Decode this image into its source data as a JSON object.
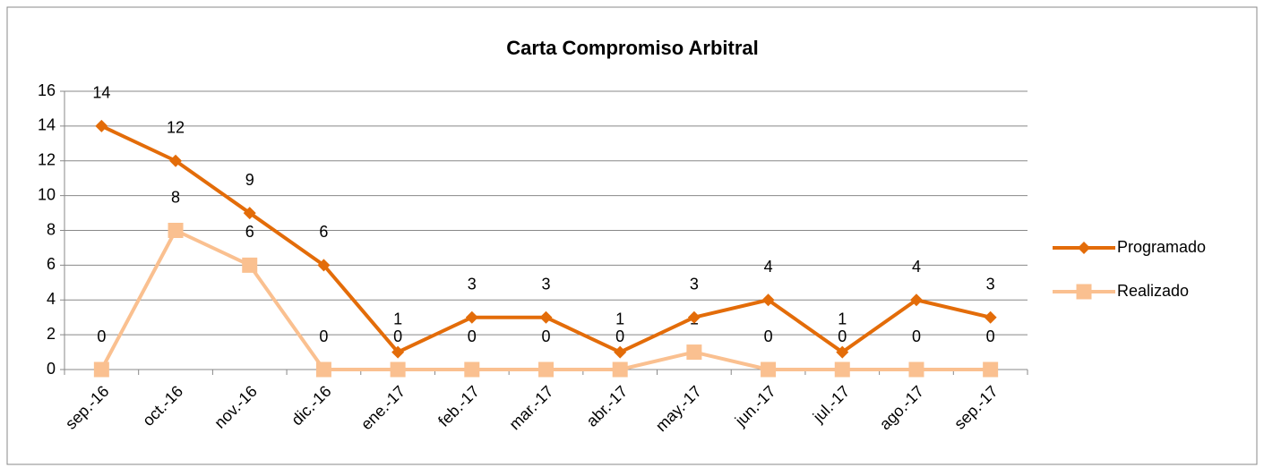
{
  "chart_data": {
    "type": "line",
    "title": "Carta Compromiso Arbitral",
    "categories": [
      "sep.-16",
      "oct.-16",
      "nov.-16",
      "dic.-16",
      "ene.-17",
      "feb.-17",
      "mar.-17",
      "abr.-17",
      "may.-17",
      "jun.-17",
      "jul.-17",
      "ago.-17",
      "sep.-17"
    ],
    "series": [
      {
        "name": "Programado",
        "color": "#e36c09",
        "marker": "diamond",
        "values": [
          14,
          12,
          9,
          6,
          1,
          3,
          3,
          1,
          3,
          4,
          1,
          4,
          3
        ]
      },
      {
        "name": "Realizado",
        "color": "#fac090",
        "marker": "square",
        "values": [
          0,
          8,
          6,
          0,
          0,
          0,
          0,
          0,
          1,
          0,
          0,
          0,
          0
        ]
      }
    ],
    "ylim": [
      0,
      16
    ],
    "yticks": [
      0,
      2,
      4,
      6,
      8,
      10,
      12,
      14,
      16
    ],
    "grid": true,
    "legend": "right"
  }
}
